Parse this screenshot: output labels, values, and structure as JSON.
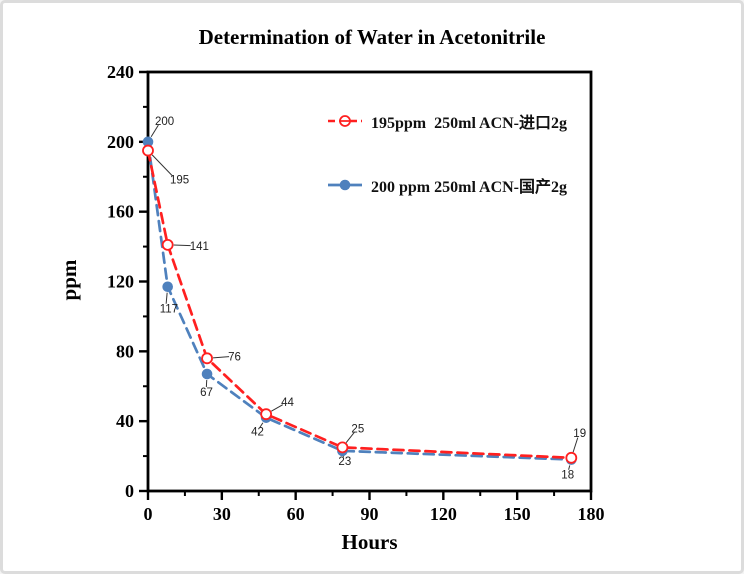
{
  "page": {
    "title": "Determination of Water in Acetonitrile"
  },
  "chart_data": {
    "type": "line",
    "title": "Determination of Water in Acetonitrile",
    "xlabel": "Hours",
    "ylabel": "ppm",
    "xlim": [
      0,
      180
    ],
    "ylim": [
      0,
      240
    ],
    "x_major_ticks": [
      0,
      30,
      60,
      90,
      120,
      150,
      180
    ],
    "x_minor_ticks": [
      15,
      45,
      75,
      105,
      135,
      165
    ],
    "y_major_ticks": [
      0,
      40,
      80,
      120,
      160,
      200,
      240
    ],
    "y_minor_ticks": [
      20,
      60,
      100,
      140,
      180,
      220
    ],
    "grid": false,
    "legend_position": "top-right-inside",
    "x": [
      0,
      8,
      24,
      48,
      79,
      172
    ],
    "series": [
      {
        "name": "195ppm  250ml ACN-进口2g",
        "color": "#ff2020",
        "marker": "open-circle",
        "line_style": "dashed",
        "values": [
          195,
          141,
          76,
          44,
          25,
          19
        ],
        "point_labels": [
          "195",
          "141",
          "76",
          "44",
          "25",
          "19"
        ],
        "point_label_offsets": [
          [
            22,
            33
          ],
          [
            22,
            5
          ],
          [
            21,
            2
          ],
          [
            15,
            -8
          ],
          [
            9,
            -15
          ],
          [
            2,
            -21
          ]
        ]
      },
      {
        "name": "200 ppm 250ml ACN-国产2g",
        "color": "#4f81bd",
        "marker": "filled-circle",
        "line_style": "dashed",
        "values": [
          200,
          117,
          67,
          42,
          23,
          18
        ],
        "point_labels": [
          "200",
          "117",
          "67",
          "42",
          "23",
          "18"
        ],
        "point_label_offsets": [
          [
            7,
            -17
          ],
          [
            -8,
            26
          ],
          [
            -7,
            22
          ],
          [
            -15,
            18
          ],
          [
            -4,
            14
          ],
          [
            -10,
            19
          ]
        ]
      }
    ],
    "annotation_color": "#333333",
    "axis_color": "#000000"
  }
}
